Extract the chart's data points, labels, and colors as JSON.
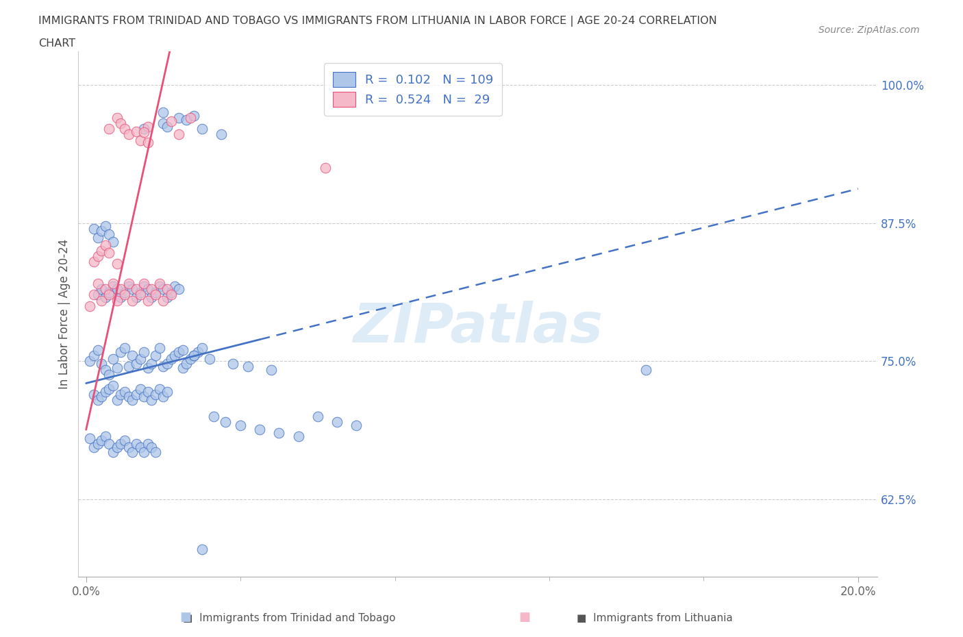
{
  "title_line1": "IMMIGRANTS FROM TRINIDAD AND TOBAGO VS IMMIGRANTS FROM LITHUANIA IN LABOR FORCE | AGE 20-24 CORRELATION",
  "title_line2": "CHART",
  "source_text": "Source: ZipAtlas.com",
  "ylabel": "In Labor Force | Age 20-24",
  "xlim": [
    -0.002,
    0.205
  ],
  "ylim": [
    0.555,
    1.03
  ],
  "xtick_positions": [
    0.0,
    0.2
  ],
  "xtick_labels": [
    "0.0%",
    "20.0%"
  ],
  "ytick_values": [
    0.625,
    0.75,
    0.875,
    1.0
  ],
  "ytick_labels": [
    "62.5%",
    "75.0%",
    "87.5%",
    "100.0%"
  ],
  "legend_r1": "0.102",
  "legend_n1": "109",
  "legend_r2": "0.524",
  "legend_n2": " 29",
  "watermark": "ZIPatlas",
  "blue_fill": "#AEC6E8",
  "blue_edge": "#4472C4",
  "pink_fill": "#F4B8C8",
  "pink_edge": "#E8507A",
  "blue_line": "#4472C4",
  "pink_line": "#E8507A",
  "title_color": "#404040",
  "axis_label_color": "#4472C4",
  "source_color": "#888888",
  "grid_color": "#CCCCCC",
  "tt_x": [
    0.001,
    0.002,
    0.003,
    0.004,
    0.005,
    0.006,
    0.007,
    0.008,
    0.009,
    0.01,
    0.011,
    0.012,
    0.013,
    0.014,
    0.015,
    0.016,
    0.017,
    0.018,
    0.019,
    0.02,
    0.021,
    0.022,
    0.023,
    0.024,
    0.025,
    0.026,
    0.027,
    0.028,
    0.029,
    0.03,
    0.002,
    0.003,
    0.004,
    0.005,
    0.006,
    0.007,
    0.008,
    0.009,
    0.01,
    0.011,
    0.012,
    0.013,
    0.014,
    0.015,
    0.016,
    0.017,
    0.018,
    0.019,
    0.02,
    0.021,
    0.001,
    0.002,
    0.003,
    0.004,
    0.005,
    0.006,
    0.007,
    0.008,
    0.009,
    0.01,
    0.011,
    0.012,
    0.013,
    0.014,
    0.015,
    0.016,
    0.017,
    0.018,
    0.033,
    0.036,
    0.04,
    0.045,
    0.05,
    0.055,
    0.06,
    0.065,
    0.07,
    0.025,
    0.028,
    0.032,
    0.038,
    0.042,
    0.048,
    0.003,
    0.004,
    0.005,
    0.006,
    0.007,
    0.008,
    0.009,
    0.01,
    0.011,
    0.012,
    0.013,
    0.014,
    0.015,
    0.016,
    0.017,
    0.018,
    0.019,
    0.02,
    0.021,
    0.022,
    0.023,
    0.024,
    0.002,
    0.003,
    0.004,
    0.005,
    0.006,
    0.007,
    0.145,
    0.03
  ],
  "tt_y": [
    0.75,
    0.755,
    0.76,
    0.748,
    0.742,
    0.738,
    0.752,
    0.744,
    0.758,
    0.762,
    0.745,
    0.755,
    0.748,
    0.752,
    0.758,
    0.744,
    0.748,
    0.755,
    0.762,
    0.745,
    0.748,
    0.752,
    0.755,
    0.758,
    0.744,
    0.748,
    0.752,
    0.755,
    0.758,
    0.762,
    0.72,
    0.715,
    0.718,
    0.722,
    0.725,
    0.728,
    0.715,
    0.72,
    0.722,
    0.718,
    0.715,
    0.72,
    0.725,
    0.718,
    0.722,
    0.715,
    0.72,
    0.725,
    0.718,
    0.722,
    0.68,
    0.672,
    0.675,
    0.678,
    0.682,
    0.675,
    0.668,
    0.672,
    0.675,
    0.678,
    0.672,
    0.668,
    0.675,
    0.672,
    0.668,
    0.675,
    0.672,
    0.668,
    0.7,
    0.695,
    0.692,
    0.688,
    0.685,
    0.682,
    0.7,
    0.695,
    0.692,
    0.76,
    0.755,
    0.752,
    0.748,
    0.745,
    0.742,
    0.81,
    0.815,
    0.808,
    0.812,
    0.818,
    0.815,
    0.808,
    0.812,
    0.818,
    0.815,
    0.808,
    0.812,
    0.818,
    0.815,
    0.808,
    0.812,
    0.818,
    0.815,
    0.808,
    0.812,
    0.818,
    0.815,
    0.87,
    0.862,
    0.868,
    0.872,
    0.865,
    0.858,
    0.742,
    0.58
  ],
  "lt_x": [
    0.001,
    0.002,
    0.003,
    0.004,
    0.005,
    0.006,
    0.007,
    0.008,
    0.009,
    0.01,
    0.011,
    0.012,
    0.013,
    0.014,
    0.015,
    0.016,
    0.017,
    0.018,
    0.019,
    0.02,
    0.021,
    0.022,
    0.002,
    0.003,
    0.004,
    0.005,
    0.006,
    0.062,
    0.008
  ],
  "lt_y": [
    0.8,
    0.81,
    0.82,
    0.805,
    0.815,
    0.81,
    0.82,
    0.805,
    0.815,
    0.81,
    0.82,
    0.805,
    0.815,
    0.81,
    0.82,
    0.805,
    0.815,
    0.81,
    0.82,
    0.805,
    0.815,
    0.81,
    0.84,
    0.845,
    0.85,
    0.855,
    0.848,
    0.925,
    0.838
  ],
  "lt_top_x": [
    0.006,
    0.008,
    0.009,
    0.01,
    0.011,
    0.013,
    0.014,
    0.016,
    0.016,
    0.022,
    0.024,
    0.027,
    0.015
  ],
  "lt_top_y": [
    0.96,
    0.97,
    0.965,
    0.96,
    0.955,
    0.958,
    0.95,
    0.962,
    0.948,
    0.967,
    0.955,
    0.97,
    0.957
  ],
  "tt_top_x": [
    0.015,
    0.02,
    0.02,
    0.021,
    0.024,
    0.026,
    0.028,
    0.03,
    0.035
  ],
  "tt_top_y": [
    0.96,
    0.975,
    0.965,
    0.962,
    0.97,
    0.968,
    0.972,
    0.96,
    0.955
  ],
  "blue_line_solid_end": 0.045,
  "blue_line_x0": 0.0,
  "blue_line_y0": 0.73,
  "blue_line_slope": 0.88,
  "pink_line_x0": 0.0,
  "pink_line_y0": 0.688,
  "pink_line_slope": 15.8
}
